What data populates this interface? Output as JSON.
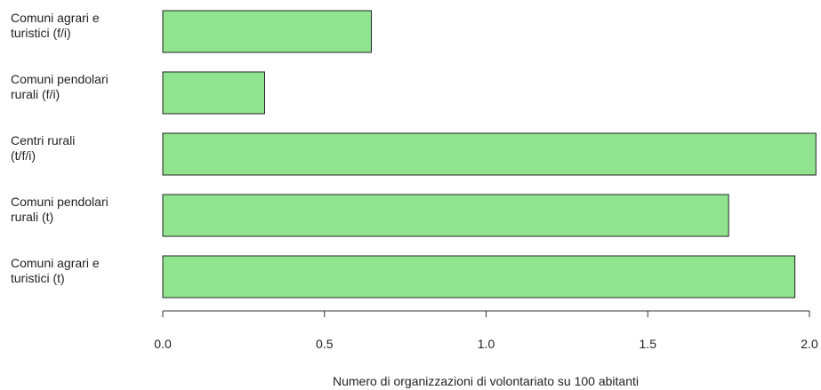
{
  "chart_data": {
    "type": "bar",
    "orientation": "horizontal",
    "categories": [
      [
        "Comuni agrari e",
        "turistici (f/i)"
      ],
      [
        "Comuni pendolari",
        "rurali (f/i)"
      ],
      [
        "Centri rurali",
        "(t/f/i)"
      ],
      [
        "Comuni pendolari",
        "rurali (t)"
      ],
      [
        "Comuni agrari e",
        "turistici (t)"
      ]
    ],
    "values": [
      0.645,
      0.315,
      2.02,
      1.75,
      1.955
    ],
    "xlabel": "Numero di organizzazioni di volontariato su 100 abitanti",
    "xlim": [
      0,
      2.0
    ],
    "xticks": [
      "0.0",
      "0.5",
      "1.0",
      "1.5",
      "2.0"
    ],
    "grid": false,
    "bar_color": "#90e490",
    "bar_border_color": "#222222"
  }
}
